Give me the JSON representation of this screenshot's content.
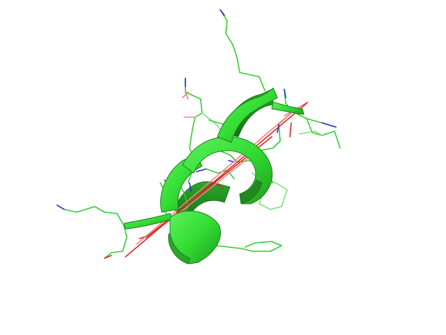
{
  "image": {
    "subject": "protein-helix-cartoon-render",
    "background": "#ffffff",
    "colors": {
      "carbon": "#2ecc2e",
      "carbon_light": "#78e078",
      "helix_face": "#33dd33",
      "helix_shadow": "#1f9e1f",
      "nitrogen": "#2222ee",
      "oxygen": "#e02020"
    }
  }
}
